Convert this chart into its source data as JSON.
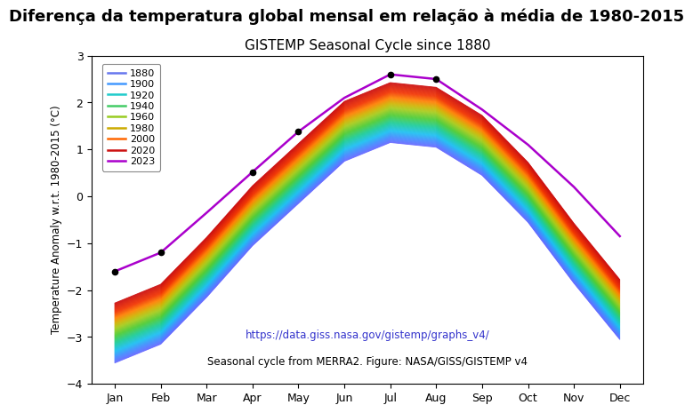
{
  "title": "Diferença da temperatura global mensal em relação à média de 1980-2015",
  "subtitle": "GISTEMP Seasonal Cycle since 1880",
  "ylabel": "Temperature Anomaly w.r.t. 1980-2015 (°C)",
  "url_text": "https://data.giss.nasa.gov/gistemp/graphs_v4/",
  "footer_text": "Seasonal cycle from MERRA2. Figure: NASA/GISS/GISTEMP v4",
  "ylim": [
    -4,
    3
  ],
  "months": [
    "Jan",
    "Feb",
    "Mar",
    "Apr",
    "May",
    "Jun",
    "Jul",
    "Aug",
    "Sep",
    "Oct",
    "Nov",
    "Dec"
  ],
  "year_start": 1880,
  "year_end": 2023,
  "legend_years": [
    1880,
    1900,
    1920,
    1940,
    1960,
    1980,
    2000,
    2020,
    2023
  ],
  "legend_colors": [
    "#6677ee",
    "#4499ff",
    "#22cccc",
    "#44cc66",
    "#99cc22",
    "#ccaa00",
    "#ff6600",
    "#cc1111",
    "#aa00cc"
  ],
  "background_color": "#ffffff",
  "title_fontsize": 13,
  "subtitle_fontsize": 11,
  "dot_months_2023": [
    1,
    2,
    4,
    5,
    7,
    8
  ],
  "curve_2023": [
    -1.6,
    -1.2,
    -0.35,
    0.52,
    1.38,
    2.1,
    2.6,
    2.5,
    1.85,
    1.1,
    0.2,
    -0.85
  ]
}
